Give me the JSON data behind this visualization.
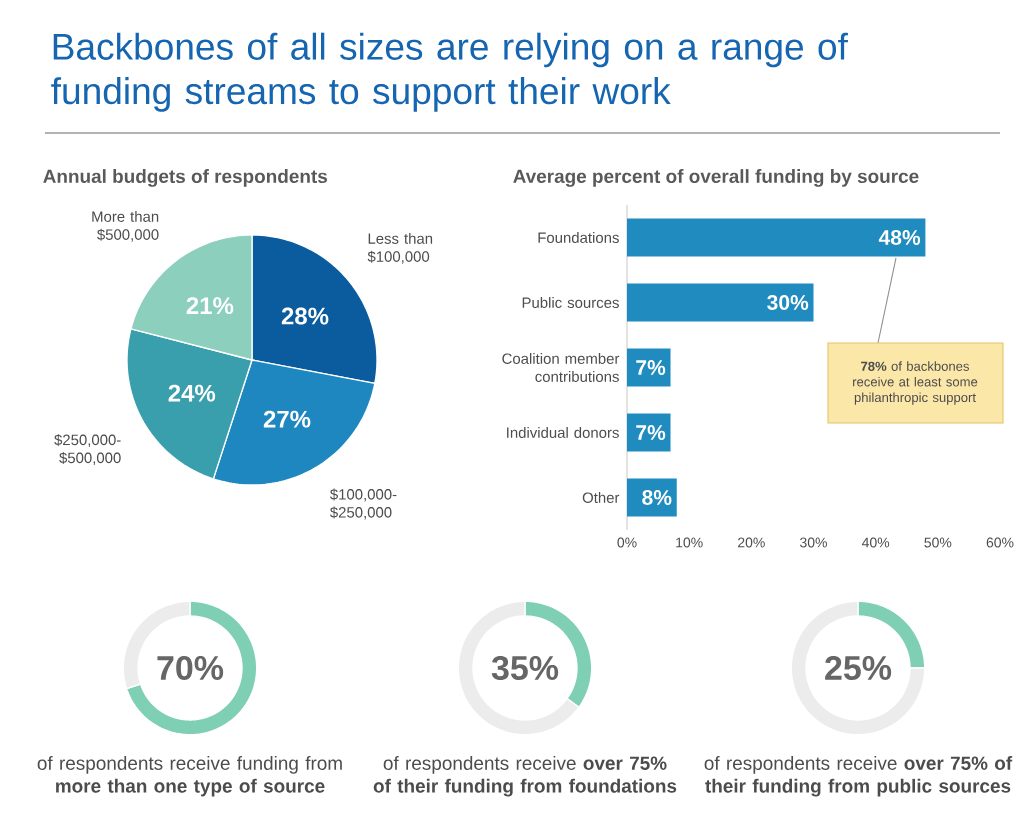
{
  "chart_data": [
    {
      "type": "pie",
      "title": "Backbones of all sizes are relying on a range of funding streams to support their work",
      "subtitle": "Annual budgets of respondents",
      "categories": [
        "Less than $100,000",
        "$100,000-$250,000",
        "$250,000-$500,000",
        "More than $500,000"
      ],
      "values": [
        28,
        27,
        24,
        21
      ],
      "colors": [
        "#0b5c9e",
        "#1f87bf",
        "#3a9fad",
        "#8ccfbd"
      ],
      "value_labels": [
        "28%",
        "27%",
        "24%",
        "21%"
      ]
    },
    {
      "type": "bar",
      "title": "Average percent of overall funding by source",
      "orientation": "horizontal",
      "categories": [
        "Foundations",
        "Public sources",
        "Coalition member contributions",
        "Individual donors",
        "Other"
      ],
      "values": [
        48,
        30,
        7,
        7,
        8
      ],
      "color": "#1f8bbf",
      "value_labels": [
        "48%",
        "30%",
        "7%",
        "7%",
        "8%"
      ],
      "xlim": [
        0,
        60
      ],
      "xticks": [
        {
          "value": 0,
          "label": "0%"
        },
        {
          "value": 10,
          "label": "10%"
        },
        {
          "value": 20,
          "label": "20%"
        },
        {
          "value": 30,
          "label": "30%"
        },
        {
          "value": 40,
          "label": "40%"
        },
        {
          "value": 50,
          "label": "50%"
        },
        {
          "value": 60,
          "label": "60%"
        }
      ],
      "annotations": [
        "**78%** of backbones receive at least some philanthropic support"
      ]
    },
    {
      "type": "donut",
      "categories": [
        null,
        null
      ],
      "values": [
        70,
        30
      ],
      "colors": [
        "#7fcfb5",
        "#ececec"
      ],
      "annotations": [
        "70%",
        "of respondents receive funding from **more than one type of source**"
      ]
    },
    {
      "type": "donut",
      "categories": [
        null,
        null
      ],
      "values": [
        35,
        65
      ],
      "colors": [
        "#7fcfb5",
        "#ececec"
      ],
      "annotations": [
        "35%",
        "of respondents receive **over 75% of their funding from foundations**"
      ]
    },
    {
      "type": "donut",
      "categories": [
        null,
        null
      ],
      "values": [
        25,
        75
      ],
      "colors": [
        "#7fcfb5",
        "#ececec"
      ],
      "annotations": [
        "25%",
        "of respondents receive **over 75% of their funding from public sources**"
      ]
    }
  ]
}
